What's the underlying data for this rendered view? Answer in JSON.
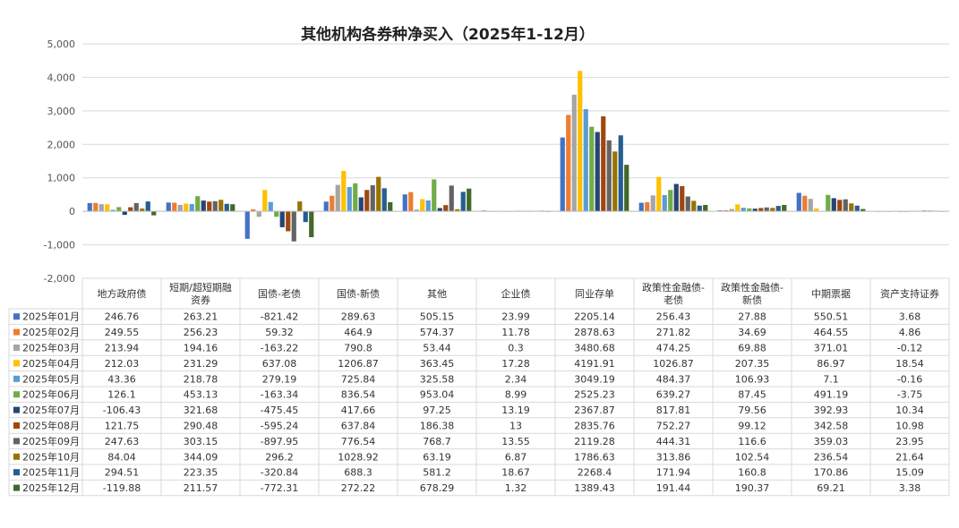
{
  "chart_data": {
    "type": "bar",
    "title": "其他机构各券种净买入（2025年1-12月）",
    "ylim": [
      -2000,
      5000
    ],
    "yticks": [
      "-2,000",
      "-1,000",
      "0",
      "1,000",
      "2,000",
      "3,000",
      "4,000",
      "5,000"
    ],
    "grid": true,
    "legend": "data-table-left",
    "categories": [
      [
        "地方政府债"
      ],
      [
        "短期/超短期融",
        "资券"
      ],
      [
        "国债-老债"
      ],
      [
        "国债-新债"
      ],
      [
        "其他"
      ],
      [
        "企业债"
      ],
      [
        "同业存单"
      ],
      [
        "政策性金融债-",
        "老债"
      ],
      [
        "政策性金融债-",
        "新债"
      ],
      [
        "中期票据"
      ],
      [
        "资产支持证券"
      ]
    ],
    "series": [
      {
        "name": "2025年01月",
        "color": "#4472C4",
        "values": [
          246.76,
          263.21,
          -821.42,
          289.63,
          505.15,
          23.99,
          2205.14,
          256.43,
          27.88,
          550.51,
          3.68
        ],
        "labels": [
          "246.76",
          "263.21",
          "-821.42",
          "289.63",
          "505.15",
          "23.99",
          "2205.14",
          "256.43",
          "27.88",
          "550.51",
          "3.68"
        ]
      },
      {
        "name": "2025年02月",
        "color": "#ED7D31",
        "values": [
          249.55,
          256.23,
          59.32,
          464.9,
          574.37,
          11.78,
          2878.63,
          271.82,
          34.69,
          464.55,
          4.86
        ],
        "labels": [
          "249.55",
          "256.23",
          "59.32",
          "464.9",
          "574.37",
          "11.78",
          "2878.63",
          "271.82",
          "34.69",
          "464.55",
          "4.86"
        ]
      },
      {
        "name": "2025年03月",
        "color": "#A5A5A5",
        "values": [
          213.94,
          194.16,
          -163.22,
          790.8,
          53.44,
          0.3,
          3480.68,
          474.25,
          69.88,
          371.01,
          -0.12
        ],
        "labels": [
          "213.94",
          "194.16",
          "-163.22",
          "790.8",
          "53.44",
          "0.3",
          "3480.68",
          "474.25",
          "69.88",
          "371.01",
          "-0.12"
        ]
      },
      {
        "name": "2025年04月",
        "color": "#FFC000",
        "values": [
          212.03,
          231.29,
          637.08,
          1206.87,
          363.45,
          17.28,
          4191.91,
          1026.87,
          207.35,
          86.97,
          18.54
        ],
        "labels": [
          "212.03",
          "231.29",
          "637.08",
          "1206.87",
          "363.45",
          "17.28",
          "4191.91",
          "1026.87",
          "207.35",
          "86.97",
          "18.54"
        ]
      },
      {
        "name": "2025年05月",
        "color": "#5B9BD5",
        "values": [
          43.36,
          218.78,
          279.19,
          725.84,
          325.58,
          2.34,
          3049.19,
          484.37,
          106.93,
          7.1,
          -0.16
        ],
        "labels": [
          "43.36",
          "218.78",
          "279.19",
          "725.84",
          "325.58",
          "2.34",
          "3049.19",
          "484.37",
          "106.93",
          "7.1",
          "-0.16"
        ]
      },
      {
        "name": "2025年06月",
        "color": "#70AD47",
        "values": [
          126.1,
          453.13,
          -163.34,
          836.54,
          953.04,
          8.99,
          2525.23,
          639.27,
          87.45,
          491.19,
          -3.75
        ],
        "labels": [
          "126.1",
          "453.13",
          "-163.34",
          "836.54",
          "953.04",
          "8.99",
          "2525.23",
          "639.27",
          "87.45",
          "491.19",
          "-3.75"
        ]
      },
      {
        "name": "2025年07月",
        "color": "#264478",
        "values": [
          -106.43,
          321.68,
          -475.45,
          417.66,
          97.25,
          13.19,
          2367.87,
          817.81,
          79.56,
          392.93,
          10.34
        ],
        "labels": [
          "-106.43",
          "321.68",
          "-475.45",
          "417.66",
          "97.25",
          "13.19",
          "2367.87",
          "817.81",
          "79.56",
          "392.93",
          "10.34"
        ]
      },
      {
        "name": "2025年08月",
        "color": "#9E480E",
        "values": [
          121.75,
          290.48,
          -595.24,
          637.84,
          186.38,
          13,
          2835.76,
          752.27,
          99.12,
          342.58,
          10.98
        ],
        "labels": [
          "121.75",
          "290.48",
          "-595.24",
          "637.84",
          "186.38",
          "13",
          "2835.76",
          "752.27",
          "99.12",
          "342.58",
          "10.98"
        ]
      },
      {
        "name": "2025年09月",
        "color": "#636363",
        "values": [
          247.63,
          303.15,
          -897.95,
          776.54,
          768.7,
          13.55,
          2119.28,
          444.31,
          116.6,
          359.03,
          23.95
        ],
        "labels": [
          "247.63",
          "303.15",
          "-897.95",
          "776.54",
          "768.7",
          "13.55",
          "2119.28",
          "444.31",
          "116.6",
          "359.03",
          "23.95"
        ]
      },
      {
        "name": "2025年10月",
        "color": "#997300",
        "values": [
          84.04,
          344.09,
          296.2,
          1028.92,
          63.19,
          6.87,
          1786.63,
          313.86,
          102.54,
          236.54,
          21.64
        ],
        "labels": [
          "84.04",
          "344.09",
          "296.2",
          "1028.92",
          "63.19",
          "6.87",
          "1786.63",
          "313.86",
          "102.54",
          "236.54",
          "21.64"
        ]
      },
      {
        "name": "2025年11月",
        "color": "#255E91",
        "values": [
          294.51,
          223.35,
          -320.84,
          688.3,
          581.2,
          18.67,
          2268.4,
          171.94,
          160.8,
          170.86,
          15.09
        ],
        "labels": [
          "294.51",
          "223.35",
          "-320.84",
          "688.3",
          "581.2",
          "18.67",
          "2268.4",
          "171.94",
          "160.8",
          "170.86",
          "15.09"
        ]
      },
      {
        "name": "2025年12月",
        "color": "#43682B",
        "values": [
          -119.88,
          211.57,
          -772.31,
          272.22,
          678.29,
          1.32,
          1389.43,
          191.44,
          190.37,
          69.21,
          3.38
        ],
        "labels": [
          "-119.88",
          "211.57",
          "-772.31",
          "272.22",
          "678.29",
          "1.32",
          "1389.43",
          "191.44",
          "190.37",
          "69.21",
          "3.38"
        ]
      }
    ]
  }
}
